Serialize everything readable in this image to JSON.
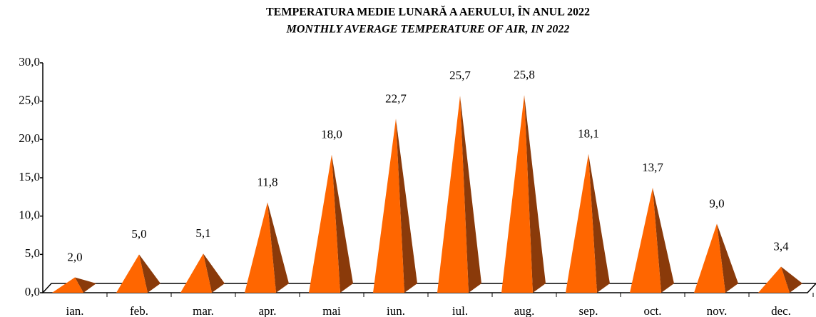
{
  "chart_data": {
    "type": "pyramid-bar",
    "title": "TEMPERATURA MEDIE LUNARĂ A AERULUI, ÎN ANUL 2022",
    "subtitle": "MONTHLY AVERAGE TEMPERATURE OF AIR, IN 2022",
    "categories": [
      "ian.",
      "feb.",
      "mar.",
      "apr.",
      "mai",
      "iun.",
      "iul.",
      "aug.",
      "sep.",
      "oct.",
      "nov.",
      "dec."
    ],
    "values": [
      2.0,
      5.0,
      5.1,
      11.8,
      18.0,
      22.7,
      25.7,
      25.8,
      18.1,
      13.7,
      9.0,
      3.4
    ],
    "value_labels": [
      "2,0",
      "5,0",
      "5,1",
      "11,8",
      "18,0",
      "22,7",
      "25,7",
      "25,8",
      "18,1",
      "13,7",
      "9,0",
      "3,4"
    ],
    "color": "#ff6600",
    "shade_color": "#8a3a0a",
    "ylim": [
      0,
      30
    ],
    "yticks": [
      {
        "value": 0,
        "label": "0,0"
      },
      {
        "value": 5,
        "label": "5,0"
      },
      {
        "value": 10,
        "label": "10,0"
      },
      {
        "value": 15,
        "label": "15,0"
      },
      {
        "value": 20,
        "label": "20,0"
      },
      {
        "value": 25,
        "label": "25,0"
      },
      {
        "value": 30,
        "label": "30,0"
      }
    ]
  }
}
